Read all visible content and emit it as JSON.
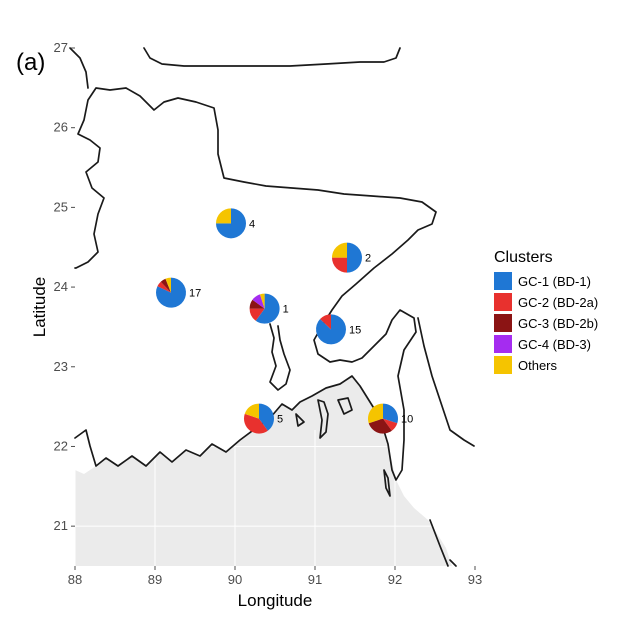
{
  "panel_label": "(a)",
  "chart_data": {
    "type": "map-pie",
    "xlabel": "Longitude",
    "ylabel": "Latitude",
    "xlim": [
      88,
      93
    ],
    "ylim": [
      20.5,
      27
    ],
    "x_ticks": [
      "88",
      "89",
      "90",
      "91",
      "92",
      "93"
    ],
    "y_ticks": [
      "21",
      "22",
      "23",
      "24",
      "25",
      "26",
      "27"
    ],
    "legend": {
      "title": "Clusters",
      "placement": "right",
      "items": [
        {
          "label": "GC-1 (BD-1)",
          "color": "#1f77d4"
        },
        {
          "label": "GC-2 (BD-2a)",
          "color": "#e8312e"
        },
        {
          "label": "GC-3 (BD-2b)",
          "color": "#8b1414"
        },
        {
          "label": "GC-4 (BD-3)",
          "color": "#a52cf0"
        },
        {
          "label": "Others",
          "color": "#f5c400"
        }
      ]
    },
    "sites": [
      {
        "n": "4",
        "lon": 89.95,
        "lat": 24.8,
        "fractions": [
          0.75,
          0,
          0,
          0,
          0.25
        ]
      },
      {
        "n": "2",
        "lon": 91.4,
        "lat": 24.37,
        "fractions": [
          0.5,
          0.25,
          0,
          0,
          0.25
        ]
      },
      {
        "n": "17",
        "lon": 89.2,
        "lat": 23.93,
        "fractions": [
          0.82,
          0.06,
          0.06,
          0,
          0.06
        ]
      },
      {
        "n": "1",
        "lon": 90.37,
        "lat": 23.73,
        "fractions": [
          0.6,
          0.15,
          0.1,
          0.1,
          0.05
        ]
      },
      {
        "n": "15",
        "lon": 91.2,
        "lat": 23.47,
        "fractions": [
          0.87,
          0.13,
          0,
          0,
          0
        ]
      },
      {
        "n": "5",
        "lon": 90.3,
        "lat": 22.35,
        "fractions": [
          0.4,
          0.4,
          0,
          0,
          0.2
        ]
      },
      {
        "n": "10",
        "lon": 91.85,
        "lat": 22.35,
        "fractions": [
          0.3,
          0.1,
          0.3,
          0,
          0.3
        ]
      }
    ]
  }
}
